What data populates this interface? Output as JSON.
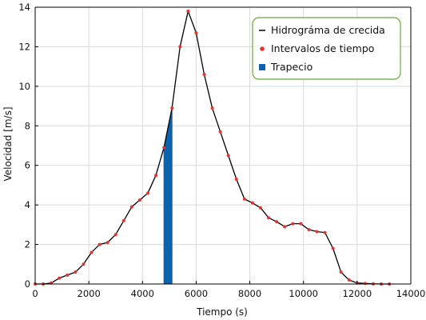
{
  "chart_data": {
    "type": "line",
    "title": "",
    "xlabel": "Tiempo (s)",
    "ylabel": "Velocidad [m/s]",
    "xlim": [
      0,
      14000
    ],
    "ylim": [
      0,
      14
    ],
    "x_ticks": [
      0,
      2000,
      4000,
      6000,
      8000,
      10000,
      12000,
      14000
    ],
    "x_tick_labels": [
      "0",
      "2000",
      "4000",
      "6000",
      "8000",
      "10000",
      "12000",
      "14000"
    ],
    "y_ticks": [
      0,
      2,
      4,
      6,
      8,
      10,
      12,
      14
    ],
    "y_tick_labels": [
      "0",
      "2",
      "4",
      "6",
      "8",
      "10",
      "12",
      "14"
    ],
    "grid": true,
    "legend_position": "top-right",
    "legend": [
      {
        "label": "Hidrográma de crecida",
        "marker": "line",
        "color": "#000000"
      },
      {
        "label": "Intervalos de tiempo",
        "marker": "dot",
        "color": "#e8322e"
      },
      {
        "label": "Trapecio",
        "marker": "square",
        "color": "#0b62ad"
      }
    ],
    "series": [
      {
        "name": "Hidrográma de crecida",
        "color": "#000000",
        "x": [
          0,
          300,
          600,
          900,
          1200,
          1500,
          1800,
          2100,
          2400,
          2700,
          3000,
          3300,
          3600,
          3900,
          4200,
          4500,
          4800,
          5100,
          5400,
          5700,
          6000,
          6300,
          6600,
          6900,
          7200,
          7500,
          7800,
          8100,
          8400,
          8700,
          9000,
          9300,
          9600,
          9900,
          10200,
          10500,
          10800,
          11100,
          11400,
          11700,
          12000,
          12300,
          12600,
          12900,
          13200
        ],
        "y": [
          0,
          0,
          0.05,
          0.3,
          0.45,
          0.6,
          1.0,
          1.6,
          2.0,
          2.1,
          2.5,
          3.2,
          3.9,
          4.25,
          4.6,
          5.5,
          6.9,
          8.9,
          12.0,
          13.8,
          12.7,
          10.6,
          8.9,
          7.7,
          6.5,
          5.3,
          4.3,
          4.1,
          3.85,
          3.35,
          3.15,
          2.9,
          3.05,
          3.05,
          2.75,
          2.65,
          2.6,
          1.8,
          0.6,
          0.2,
          0.05,
          0.03,
          0.01,
          0,
          0
        ]
      },
      {
        "name": "Intervalos de tiempo",
        "type": "scatter",
        "color": "#e8322e",
        "x": [
          0,
          300,
          600,
          900,
          1200,
          1500,
          1800,
          2100,
          2400,
          2700,
          3000,
          3300,
          3600,
          3900,
          4200,
          4500,
          4800,
          5100,
          5400,
          5700,
          6000,
          6300,
          6600,
          6900,
          7200,
          7500,
          7800,
          8100,
          8400,
          8700,
          9000,
          9300,
          9600,
          9900,
          10200,
          10500,
          10800,
          11100,
          11400,
          11700,
          12000,
          12300,
          12600,
          12900,
          13200
        ],
        "y": [
          0,
          0,
          0.05,
          0.3,
          0.45,
          0.6,
          1.0,
          1.6,
          2.0,
          2.1,
          2.5,
          3.2,
          3.9,
          4.25,
          4.6,
          5.5,
          6.9,
          8.9,
          12.0,
          13.8,
          12.7,
          10.6,
          8.9,
          7.7,
          6.5,
          5.3,
          4.3,
          4.1,
          3.85,
          3.35,
          3.15,
          2.9,
          3.05,
          3.05,
          2.75,
          2.65,
          2.6,
          1.8,
          0.6,
          0.2,
          0.05,
          0.03,
          0.01,
          0,
          0
        ]
      },
      {
        "name": "Trapecio",
        "type": "area",
        "color": "#0b62ad",
        "x": [
          4800,
          5100
        ],
        "y": [
          6.9,
          8.9
        ]
      }
    ]
  }
}
